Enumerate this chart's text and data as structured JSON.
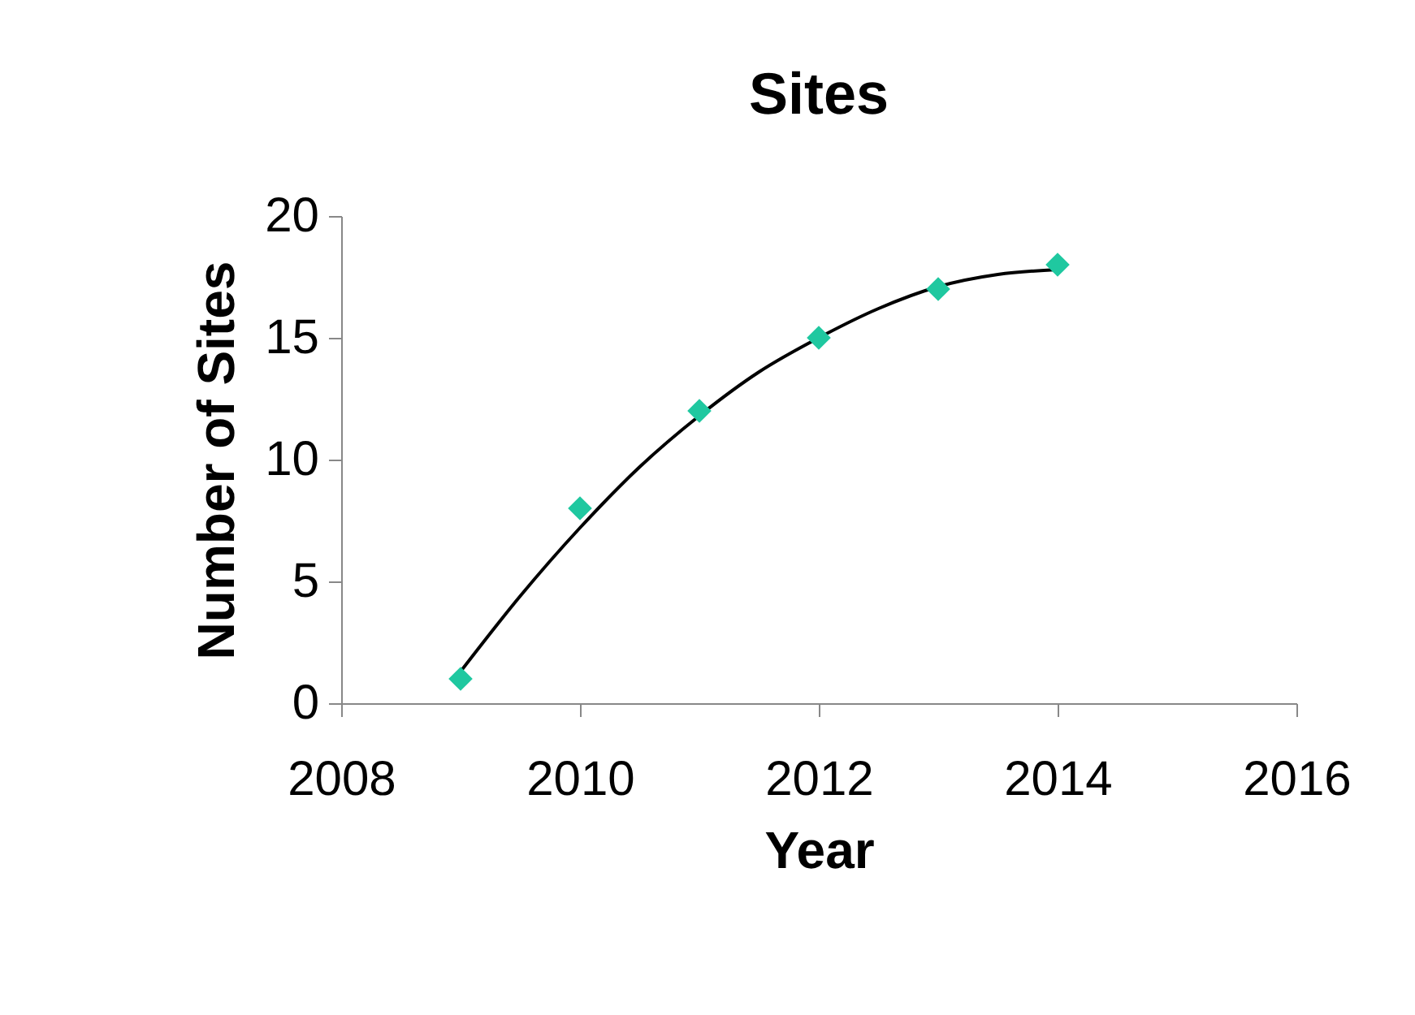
{
  "chart_data": {
    "type": "scatter",
    "title": "Sites",
    "xlabel": "Year",
    "ylabel": "Number of Sites",
    "x": [
      2009,
      2010,
      2011,
      2012,
      2013,
      2014
    ],
    "series": [
      {
        "color": "#1fc8a0",
        "marker": "diamond",
        "values": [
          1,
          8,
          12,
          15,
          17,
          18
        ]
      },
      {
        "type": "line",
        "color": "#000000",
        "line_style": "solid",
        "x": [
          2009,
          2009.5,
          2010,
          2010.5,
          2011,
          2011.5,
          2012,
          2012.5,
          2013,
          2013.5,
          2014
        ],
        "values": [
          1.3,
          4.4,
          7.2,
          9.7,
          11.8,
          13.6,
          15.0,
          16.2,
          17.1,
          17.6,
          17.8
        ]
      }
    ],
    "xlim": [
      2008,
      2016
    ],
    "xticks": [
      2008,
      2010,
      2012,
      2014,
      2016
    ],
    "ylim": [
      0,
      20
    ],
    "yticks": [
      0,
      5,
      10,
      15,
      20
    ]
  }
}
